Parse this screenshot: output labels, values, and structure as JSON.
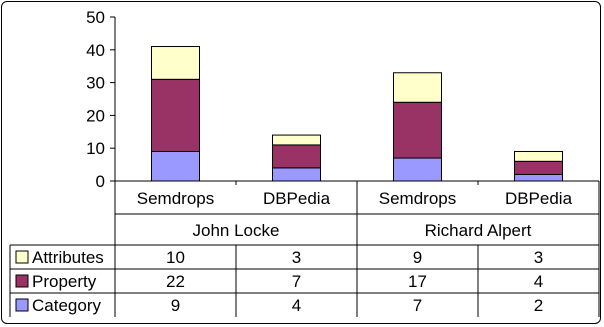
{
  "chart_data": {
    "type": "bar",
    "stacked": true,
    "categories": [
      "Semdrops",
      "DBPedia",
      "Semdrops",
      "DBPedia"
    ],
    "groups": [
      {
        "label": "John Locke",
        "span": 2
      },
      {
        "label": "Richard Alpert",
        "span": 2
      }
    ],
    "series": [
      {
        "name": "Category",
        "values": [
          9,
          4,
          7,
          2
        ],
        "color": "#9999ff"
      },
      {
        "name": "Property",
        "values": [
          22,
          7,
          17,
          4
        ],
        "color": "#993366"
      },
      {
        "name": "Attributes",
        "values": [
          10,
          3,
          9,
          3
        ],
        "color": "#ffffcc"
      }
    ],
    "table_rows": [
      "Attributes",
      "Property",
      "Category"
    ],
    "y_ticks": [
      0,
      10,
      20,
      30,
      40,
      50
    ],
    "ylim": [
      0,
      50
    ],
    "grid": false,
    "data_table": true,
    "legend": "data-table-left"
  }
}
